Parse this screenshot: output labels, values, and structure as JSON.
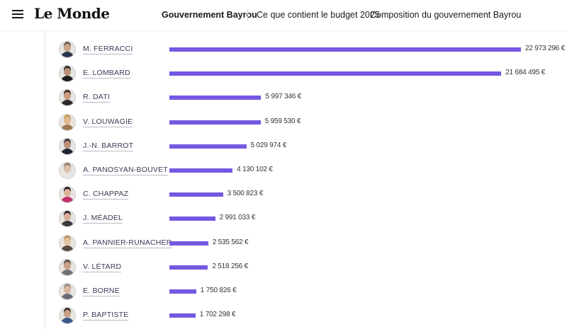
{
  "header": {
    "logo": "Le Monde",
    "nav_active": "Gouvernement Bayrou",
    "nav_links": [
      "Ce que contient le budget 2025",
      "Composition du gouvernement Bayrou"
    ]
  },
  "chart_data": {
    "type": "bar",
    "orientation": "horizontal",
    "bar_color": "#7458e0",
    "categories": [
      "M. FERRACCI",
      "E. LOMBARD",
      "R. DATI",
      "V. LOUWAGIE",
      "J.-N. BARROT",
      "A. PANOSYAN-BOUVET",
      "C. CHAPPAZ",
      "J. MÉADEL",
      "A. PANNIER-RUNACHER",
      "V. LÉTARD",
      "E. BORNE",
      "P. BAPTISTE"
    ],
    "values": [
      22973296,
      21684495,
      5997346,
      5959530,
      5029974,
      4130102,
      3500823,
      2991033,
      2535562,
      2518256,
      1750826,
      1702298
    ],
    "value_labels": [
      "22 973 296 €",
      "21 684 495 €",
      "5 997 346 €",
      "5 959 530 €",
      "5 029 974 €",
      "4 130 102 €",
      "3 500 823 €",
      "2 991 033 €",
      "2 535 562 €",
      "2 518 256 €",
      "1 750 826 €",
      "1 702 298 €"
    ],
    "xlim": [
      0,
      22973296
    ]
  },
  "avatars": [
    {
      "skin": "#c9a58a",
      "hair": "#6b5a4a",
      "shirt": "#2a3550"
    },
    {
      "skin": "#b89078",
      "hair": "#2a2a2a",
      "shirt": "#1d1d1d"
    },
    {
      "skin": "#c89b80",
      "hair": "#3b2a22",
      "shirt": "#2b2b2b"
    },
    {
      "skin": "#e0b890",
      "hair": "#c99a55",
      "shirt": "#a07a50"
    },
    {
      "skin": "#b89078",
      "hair": "#3a3030",
      "shirt": "#1e2430"
    },
    {
      "skin": "#dcc0a8",
      "hair": "#8c7a6a",
      "shirt": "#e6e6e6"
    },
    {
      "skin": "#d9b49a",
      "hair": "#241a18",
      "shirt": "#c0306a"
    },
    {
      "skin": "#d8b09a",
      "hair": "#2a2220",
      "shirt": "#3a3a3a"
    },
    {
      "skin": "#e2c2a0",
      "hair": "#b89060",
      "shirt": "#5a4a40"
    },
    {
      "skin": "#c8a088",
      "hair": "#5a4a40",
      "shirt": "#707070"
    },
    {
      "skin": "#d8b8a0",
      "hair": "#9a8a80",
      "shirt": "#6a6a7a"
    },
    {
      "skin": "#c8a088",
      "hair": "#3a2a20",
      "shirt": "#3a5a8a"
    }
  ]
}
